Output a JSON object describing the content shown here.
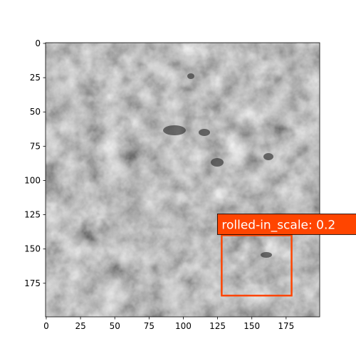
{
  "chart_data": {
    "type": "image",
    "xlim": [
      -0.5,
      199.5
    ],
    "ylim": [
      199.5,
      -0.5
    ],
    "xticks": [
      0,
      25,
      50,
      75,
      100,
      125,
      150,
      175
    ],
    "yticks": [
      0,
      25,
      50,
      75,
      100,
      125,
      150,
      175
    ],
    "boxes": [
      {
        "label": "rolled-in_scale: 0.2",
        "x0": 128,
        "y0": 140,
        "x1": 179,
        "y1": 184,
        "color": "#ff4500"
      }
    ]
  }
}
